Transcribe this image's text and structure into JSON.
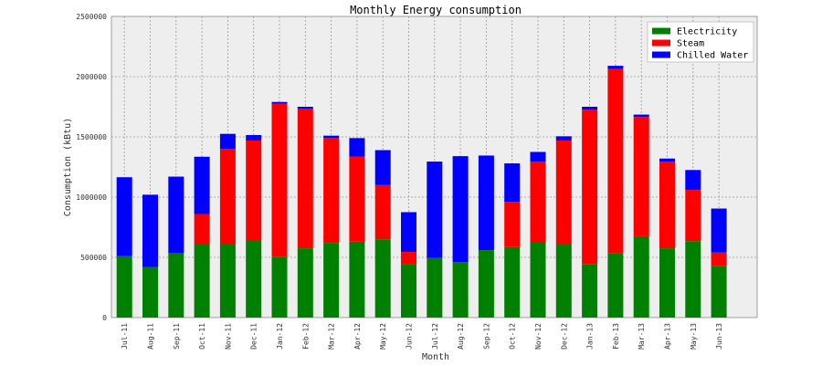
{
  "chart_data": {
    "type": "bar",
    "stacked": true,
    "title": "Monthly Energy consumption",
    "xlabel": "Month",
    "ylabel": "Consumption (kBtu)",
    "ylim": [
      0,
      2500000
    ],
    "yticks": [
      0,
      500000,
      1000000,
      1500000,
      2000000,
      2500000
    ],
    "grid": true,
    "legend_position": "top-right",
    "categories": [
      "Jul-11",
      "Aug-11",
      "Sep-11",
      "Oct-11",
      "Nov-11",
      "Dec-11",
      "Jan-12",
      "Feb-12",
      "Mar-12",
      "Apr-12",
      "May-12",
      "Jun-12",
      "Jul-12",
      "Aug-12",
      "Sep-12",
      "Oct-12",
      "Nov-12",
      "Dec-12",
      "Jan-13",
      "Feb-13",
      "Mar-13",
      "Apr-13",
      "May-13",
      "Jun-13"
    ],
    "series": [
      {
        "name": "Electricity",
        "color": "#008000",
        "values": [
          510000,
          420000,
          535000,
          610000,
          610000,
          640000,
          505000,
          575000,
          620000,
          630000,
          650000,
          440000,
          495000,
          460000,
          560000,
          585000,
          625000,
          610000,
          445000,
          535000,
          675000,
          575000,
          635000,
          430000
        ]
      },
      {
        "name": "Steam",
        "color": "#ff0000",
        "values": [
          0,
          0,
          0,
          250000,
          790000,
          830000,
          1270000,
          1160000,
          870000,
          705000,
          450000,
          105000,
          0,
          0,
          0,
          375000,
          670000,
          860000,
          1280000,
          1530000,
          990000,
          720000,
          425000,
          110000
        ]
      },
      {
        "name": "Chilled Water",
        "color": "#0000ff",
        "values": [
          655000,
          600000,
          635000,
          475000,
          125000,
          45000,
          15000,
          15000,
          20000,
          155000,
          290000,
          330000,
          800000,
          880000,
          785000,
          320000,
          80000,
          35000,
          25000,
          25000,
          20000,
          25000,
          165000,
          365000
        ]
      }
    ]
  }
}
